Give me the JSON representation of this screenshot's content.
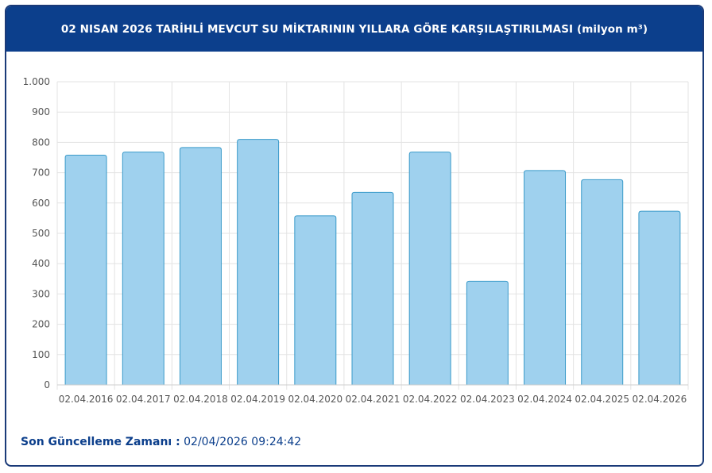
{
  "header": {
    "title": "02 NISAN 2026 TARİHLİ MEVCUT SU MİKTARININ YILLARA GÖRE KARŞILAŞTIRILMASI (milyon m³)"
  },
  "footer": {
    "label": "Son Güncelleme Zamanı :",
    "value": "02/04/2026 09:24:42"
  },
  "colors": {
    "header_bg": "#0c3f8c",
    "bar_fill": "#9fd1ee",
    "bar_stroke": "#3a9ac9",
    "grid": "#e3e3e3"
  },
  "chart_data": {
    "type": "bar",
    "categories": [
      "02.04.2016",
      "02.04.2017",
      "02.04.2018",
      "02.04.2019",
      "02.04.2020",
      "02.04.2021",
      "02.04.2022",
      "02.04.2023",
      "02.04.2024",
      "02.04.2025",
      "02.04.2026"
    ],
    "values": [
      758,
      768,
      783,
      810,
      558,
      635,
      768,
      342,
      707,
      677,
      573
    ],
    "ylim": [
      0,
      1000
    ],
    "yticks": [
      0,
      100,
      200,
      300,
      400,
      500,
      600,
      700,
      800,
      900,
      1000
    ],
    "ytick_labels": [
      "0",
      "100",
      "200",
      "300",
      "400",
      "500",
      "600",
      "700",
      "800",
      "900",
      "1.000"
    ],
    "grid": true
  }
}
